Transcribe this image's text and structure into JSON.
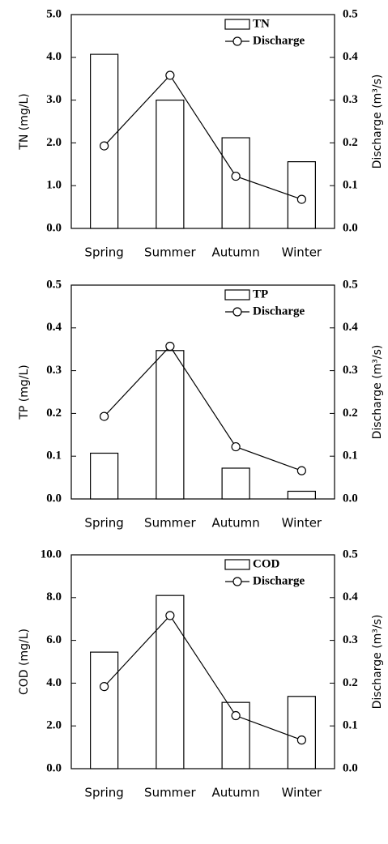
{
  "chart_data": [
    {
      "type": "bar",
      "categories": [
        "Spring",
        "Summer",
        "Autumn",
        "Winter"
      ],
      "ylabel": "TN (mg/L)",
      "y2label": "Discharge (m³/s)",
      "ylim": [
        0,
        5
      ],
      "yticks": [
        {
          "value": 0,
          "label": "0.0"
        },
        {
          "value": 1,
          "label": "1.0"
        },
        {
          "value": 2,
          "label": "2.0"
        },
        {
          "value": 3,
          "label": "3.0"
        },
        {
          "value": 4,
          "label": "4.0"
        },
        {
          "value": 5,
          "label": "5.0"
        }
      ],
      "y2lim": [
        0,
        0.5
      ],
      "y2ticks": [
        {
          "value": 0,
          "label": "0.0"
        },
        0.1,
        0.2,
        0.3,
        0.4,
        0.5
      ],
      "series": [
        {
          "name": "TN",
          "type": "bar",
          "color": "#000000",
          "values": [
            4.07,
            3.0,
            2.12,
            1.56
          ]
        },
        {
          "name": "Discharge",
          "type": "line",
          "axis": "y2",
          "color": "#000000",
          "values": [
            0.193,
            0.358,
            0.122,
            0.068
          ]
        }
      ]
    },
    {
      "type": "bar",
      "categories": [
        "Spring",
        "Summer",
        "Autumn",
        "Winter"
      ],
      "ylabel": "TP (mg/L)",
      "y2label": "Discharge (m³/s)",
      "ylim": [
        0,
        0.5
      ],
      "yticks": [
        {
          "value": 0,
          "label": "0.0"
        },
        0.1,
        0.2,
        0.3,
        0.4,
        0.5
      ],
      "y2lim": [
        0,
        0.5
      ],
      "y2ticks": [
        {
          "value": 0,
          "label": "0.0"
        },
        0.1,
        0.2,
        0.3,
        0.4,
        0.5
      ],
      "series": [
        {
          "name": "TP",
          "type": "bar",
          "color": "#000000",
          "values": [
            0.107,
            0.347,
            0.072,
            0.018
          ]
        },
        {
          "name": "Discharge",
          "type": "line",
          "axis": "y2",
          "color": "#000000",
          "values": [
            0.193,
            0.357,
            0.122,
            0.066
          ]
        }
      ]
    },
    {
      "type": "bar",
      "categories": [
        "Spring",
        "Summer",
        "Autumn",
        "Winter"
      ],
      "ylabel": "COD (mg/L)",
      "y2label": "Discharge (m³/s)",
      "ylim": [
        0,
        10
      ],
      "yticks": [
        {
          "value": 0,
          "label": "0.0"
        },
        {
          "value": 2,
          "label": "2.0"
        },
        {
          "value": 4,
          "label": "4.0"
        },
        {
          "value": 6,
          "label": "6.0"
        },
        {
          "value": 8,
          "label": "8.0"
        },
        {
          "value": 10,
          "label": "10.0"
        }
      ],
      "y2lim": [
        0,
        0.5
      ],
      "y2ticks": [
        {
          "value": 0,
          "label": "0.0"
        },
        0.1,
        0.2,
        0.3,
        0.4,
        0.5
      ],
      "series": [
        {
          "name": "COD",
          "type": "bar",
          "color": "#000000",
          "values": [
            5.45,
            8.1,
            3.1,
            3.38
          ]
        },
        {
          "name": "Discharge",
          "type": "line",
          "axis": "y2",
          "color": "#000000",
          "values": [
            0.192,
            0.358,
            0.124,
            0.067
          ]
        }
      ]
    }
  ]
}
